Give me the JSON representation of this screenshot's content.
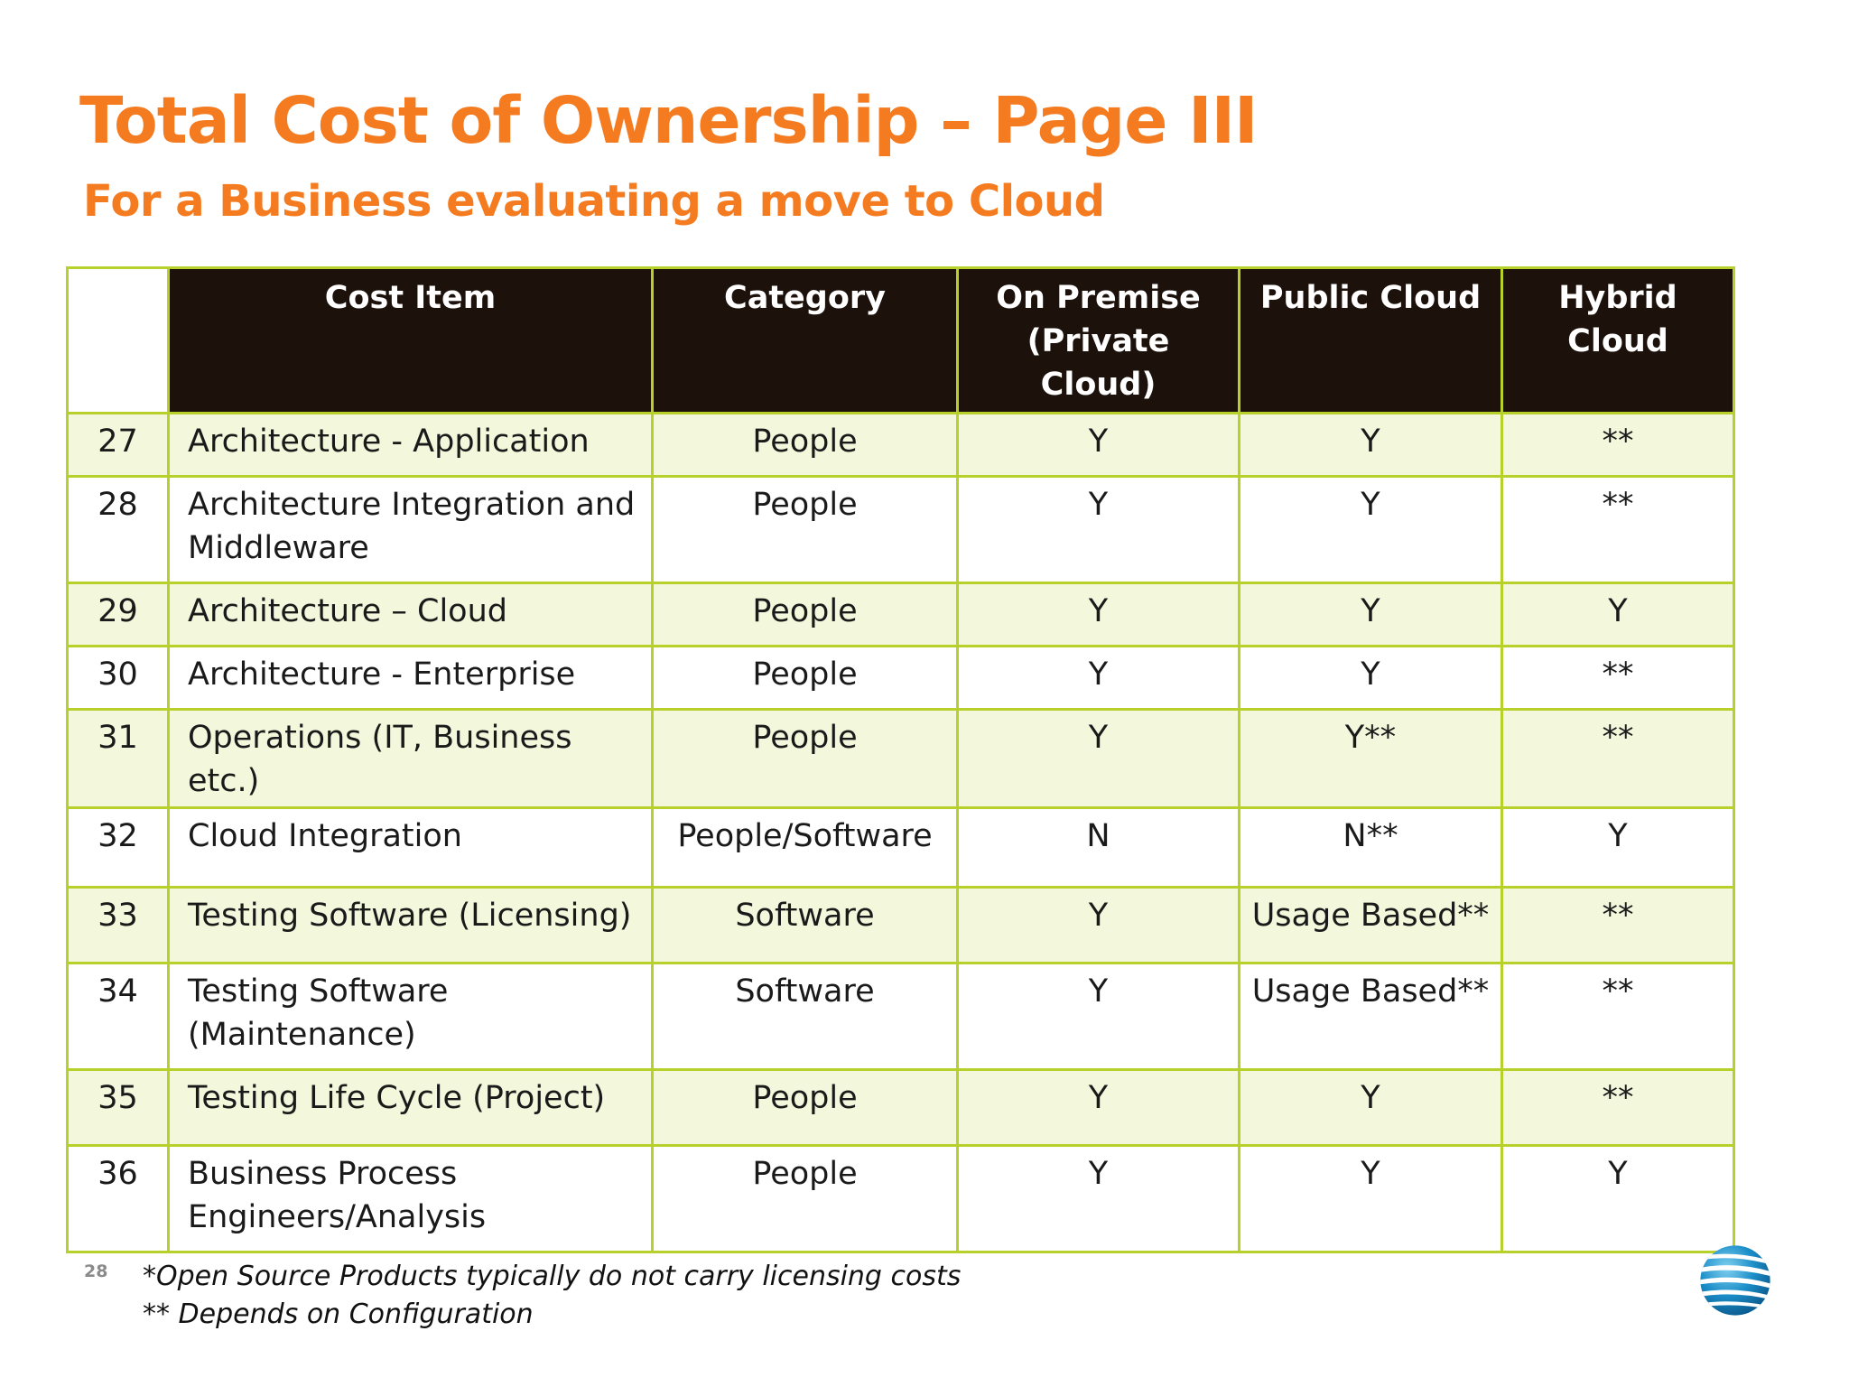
{
  "slide": {
    "title": "Total Cost of Ownership – Page III",
    "subtitle": "For a Business evaluating a move to Cloud",
    "page_number": "28"
  },
  "table": {
    "headers": [
      "",
      "Cost Item",
      "Category",
      "On Premise\n(Private Cloud)",
      "Public Cloud",
      "Hybrid Cloud"
    ],
    "rows": [
      {
        "num": "27",
        "item": "Architecture - Application",
        "category": "People",
        "on_premise": "Y",
        "public_cloud": "Y",
        "hybrid_cloud": "**"
      },
      {
        "num": "28",
        "item": "Architecture Integration and Middleware",
        "category": "People",
        "on_premise": "Y",
        "public_cloud": "Y",
        "hybrid_cloud": "**"
      },
      {
        "num": "29",
        "item": "Architecture – Cloud",
        "category": "People",
        "on_premise": "Y",
        "public_cloud": "Y",
        "hybrid_cloud": "Y"
      },
      {
        "num": "30",
        "item": "Architecture - Enterprise",
        "category": "People",
        "on_premise": "Y",
        "public_cloud": "Y",
        "hybrid_cloud": "**"
      },
      {
        "num": "31",
        "item": "Operations (IT, Business etc.)",
        "category": "People",
        "on_premise": "Y",
        "public_cloud": "Y**",
        "hybrid_cloud": "**"
      },
      {
        "num": "32",
        "item": "Cloud Integration",
        "category": "People/Software",
        "on_premise": "N",
        "public_cloud": "N**",
        "hybrid_cloud": "Y"
      },
      {
        "num": "33",
        "item": "Testing Software  (Licensing)",
        "category": "Software",
        "on_premise": "Y",
        "public_cloud": "Usage Based**",
        "hybrid_cloud": "**"
      },
      {
        "num": "34",
        "item": "Testing Software (Maintenance)",
        "category": "Software",
        "on_premise": "Y",
        "public_cloud": "Usage Based**",
        "hybrid_cloud": "**"
      },
      {
        "num": "35",
        "item": "Testing  Life Cycle (Project)",
        "category": "People",
        "on_premise": "Y",
        "public_cloud": "Y",
        "hybrid_cloud": "**"
      },
      {
        "num": "36",
        "item": "Business Process Engineers/Analysis",
        "category": "People",
        "on_premise": "Y",
        "public_cloud": "Y",
        "hybrid_cloud": "Y"
      }
    ]
  },
  "footnotes": [
    "*Open Source Products typically do not carry licensing costs",
    "** Depends on Configuration"
  ],
  "colors": {
    "accent": "#f47b20",
    "header_bg": "#1c110b",
    "border": "#b7d12a",
    "row_shade": "#f3f7dc"
  },
  "logo": {
    "icon": "att-globe-icon"
  }
}
